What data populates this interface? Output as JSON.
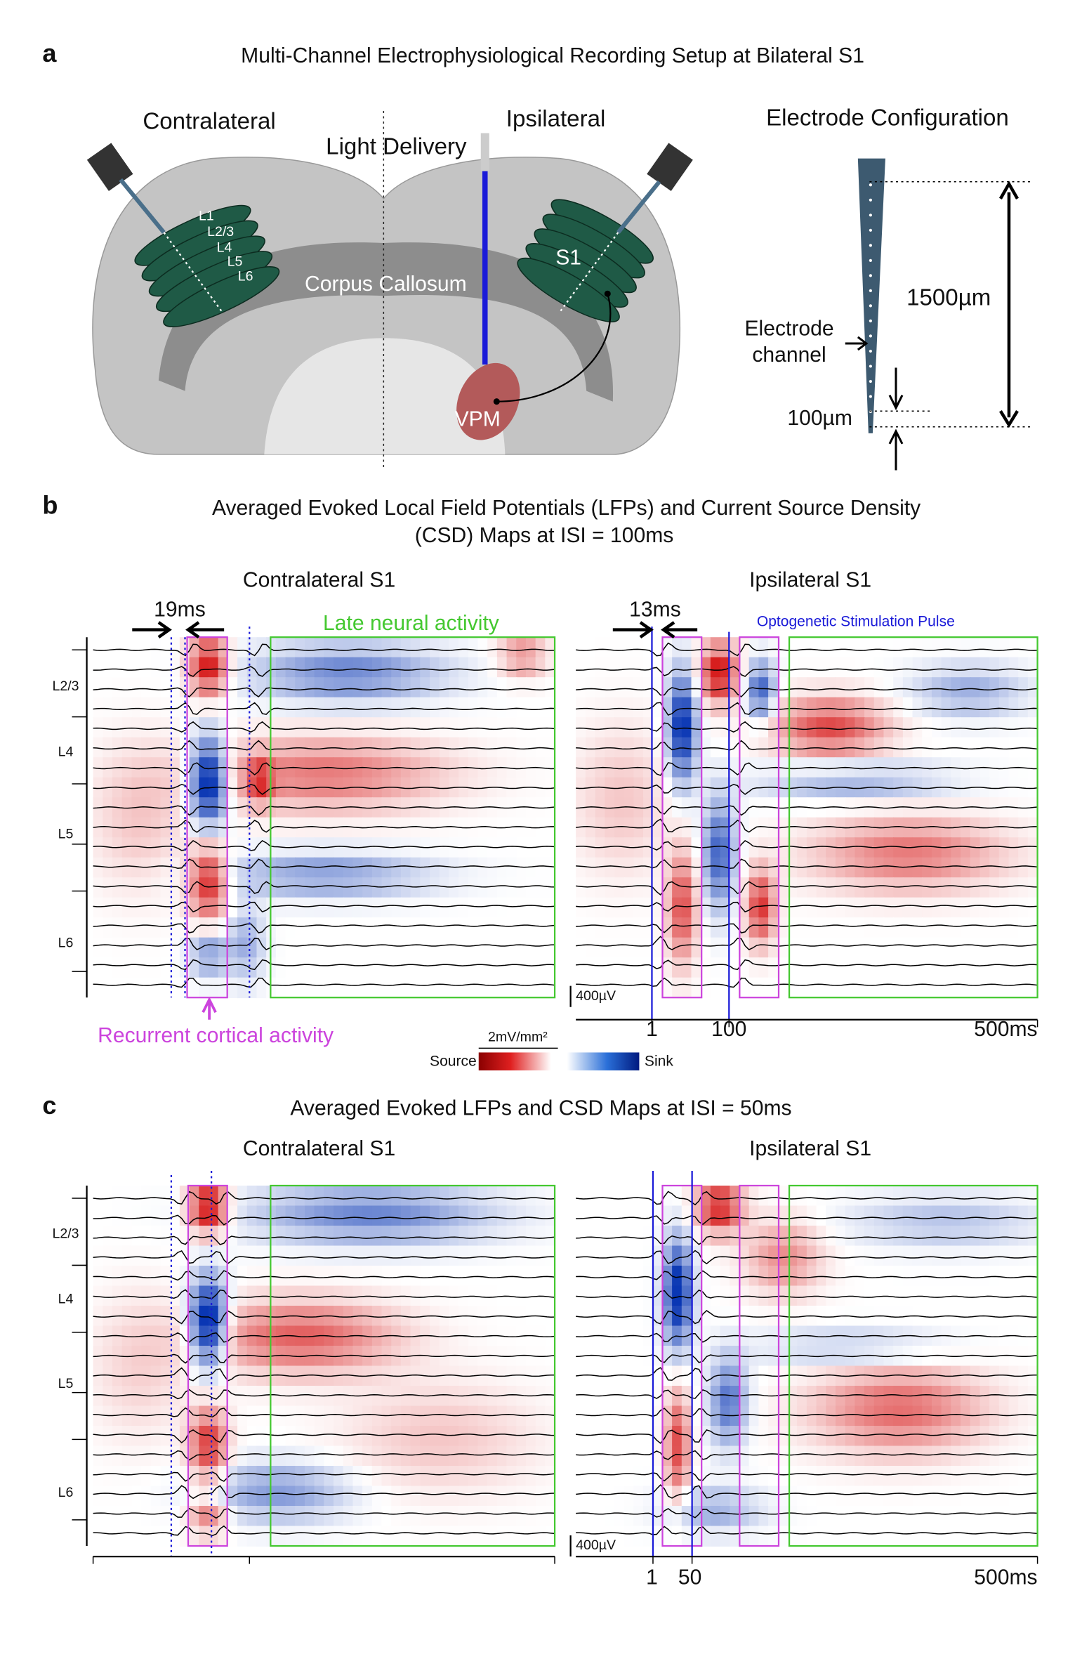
{
  "panel_a": {
    "label": "a",
    "title": "Multi-Channel Electrophysiological Recording Setup at Bilateral S1",
    "contralateral": "Contralateral",
    "ipsilateral": "Ipsilateral",
    "light_delivery": "Light Delivery",
    "corpus_callosum": "Corpus Callosum",
    "s1": "S1",
    "vpm": "VPM",
    "layers": [
      "L1",
      "L2/3",
      "L4",
      "L5",
      "L6"
    ],
    "electrode_title": "Electrode Configuration",
    "length": "1500µm",
    "channel": [
      "Electrode",
      "channel"
    ],
    "spacing": "100µm"
  },
  "panel_b": {
    "label": "b",
    "title": [
      "Averaged Evoked Local Field Potentials (LFPs) and Current Source Density",
      "(CSD) Maps at ISI = 100ms"
    ],
    "left_title": "Contralateral S1",
    "right_title": "Ipsilateral S1",
    "left_delay": "19ms",
    "right_delay": "13ms",
    "late": "Late neural activity",
    "opto": "Optogenetic Stimulation Pulse",
    "layers": [
      "L2/3",
      "L4",
      "L5",
      "L6"
    ],
    "scale": "400µV",
    "x_labels": [
      "1",
      "100",
      "500ms"
    ],
    "recurrent": "Recurrent cortical activity",
    "colorbar": {
      "unit": "2mV/mm²",
      "source": "Source",
      "sink": "Sink"
    }
  },
  "panel_c": {
    "label": "c",
    "title": "Averaged Evoked LFPs and CSD Maps at ISI = 50ms",
    "left_title": "Contralateral S1",
    "right_title": "Ipsilateral S1",
    "layers": [
      "L2/3",
      "L4",
      "L5",
      "L6"
    ],
    "scale": "400µV",
    "x_labels": [
      "1",
      "50",
      "500ms"
    ]
  }
}
